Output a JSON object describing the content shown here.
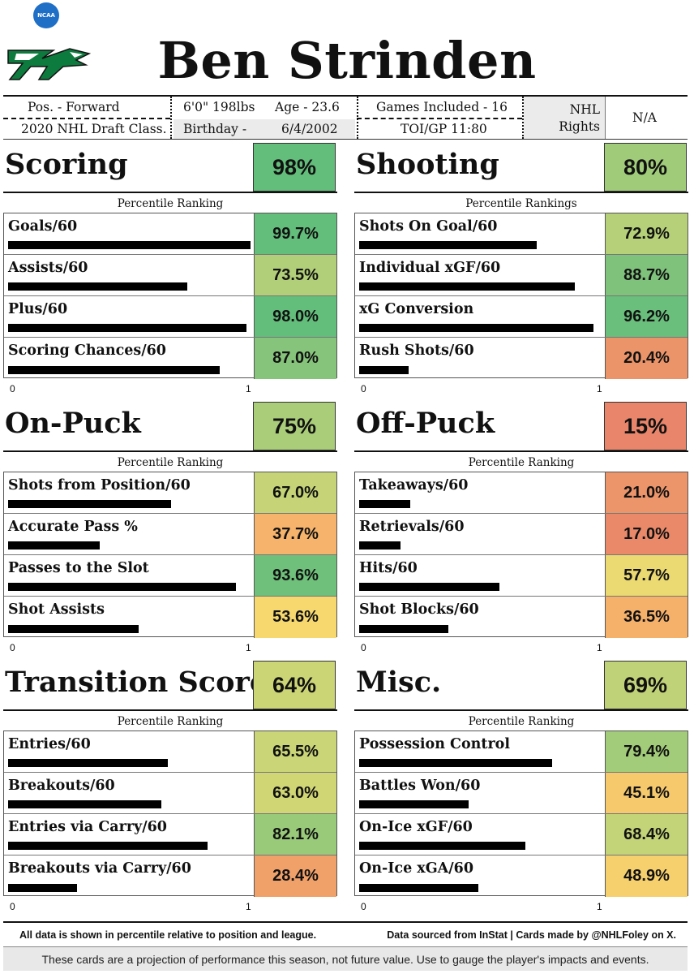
{
  "colors": {
    "green_dark": "#63be7b",
    "green_light": "#95c87b",
    "yellow_green": "#c3d377",
    "yellow": "#f6d86f",
    "orange": "#f5b06a",
    "orange_red": "#e9896a"
  },
  "header": {
    "ncaa_logo": "NCAA",
    "logo": "nd-hawk-logo",
    "player_name": "Ben Strinden"
  },
  "info": {
    "position": "Pos. - Forward",
    "draft_class": "2020 NHL Draft Class.",
    "height_weight": "6'0\" 198lbs",
    "age": "Age - 23.6",
    "birthday_label": "Birthday -",
    "birthday": "6/4/2002",
    "games": "Games Included - 16",
    "toi": "TOI/GP 11:80",
    "rights_label_1": "NHL",
    "rights_label_2": "Rights",
    "rights_value": "N/A"
  },
  "chart_data": [
    {
      "type": "bar",
      "title": "Scoring",
      "score": "98%",
      "score_color": "#63be7b",
      "caption": "Percentile Ranking",
      "xlim": [
        0,
        1
      ],
      "ticks": [
        "0",
        "1"
      ],
      "rows": [
        {
          "label": "Goals/60",
          "value": 0.997,
          "display": "99.7%",
          "color": "#63be7b"
        },
        {
          "label": "Assists/60",
          "value": 0.735,
          "display": "73.5%",
          "color": "#b1cf78"
        },
        {
          "label": "Plus/60",
          "value": 0.98,
          "display": "98.0%",
          "color": "#63be7b"
        },
        {
          "label": "Scoring Chances/60",
          "value": 0.87,
          "display": "87.0%",
          "color": "#86c47b"
        }
      ]
    },
    {
      "type": "bar",
      "title": "Shooting",
      "score": "80%",
      "score_color": "#a0cc7a",
      "caption": "Percentile Rankings",
      "xlim": [
        0,
        1
      ],
      "ticks": [
        "0",
        "1"
      ],
      "rows": [
        {
          "label": "Shots On Goal/60",
          "value": 0.729,
          "display": "72.9%",
          "color": "#b5d078"
        },
        {
          "label": "Individual xGF/60",
          "value": 0.887,
          "display": "88.7%",
          "color": "#7fc27b"
        },
        {
          "label": "xG Conversion",
          "value": 0.962,
          "display": "96.2%",
          "color": "#69bf7b"
        },
        {
          "label": "Rush Shots/60",
          "value": 0.204,
          "display": "20.4%",
          "color": "#ec9469"
        }
      ]
    },
    {
      "type": "bar",
      "title": "On-Puck",
      "score": "75%",
      "score_color": "#aacd79",
      "caption": "Percentile Ranking",
      "xlim": [
        0,
        1
      ],
      "ticks": [
        "0",
        "1"
      ],
      "rows": [
        {
          "label": "Shots from Position/60",
          "value": 0.67,
          "display": "67.0%",
          "color": "#c6d477"
        },
        {
          "label": "Accurate Pass %",
          "value": 0.377,
          "display": "37.7%",
          "color": "#f5b36b"
        },
        {
          "label": "Passes to the Slot",
          "value": 0.936,
          "display": "93.6%",
          "color": "#6fc07b"
        },
        {
          "label": "Shot Assists",
          "value": 0.536,
          "display": "53.6%",
          "color": "#f6d86f"
        }
      ]
    },
    {
      "type": "bar",
      "title": "Off-Puck",
      "score": "15%",
      "score_color": "#e8856a",
      "caption": "Percentile Ranking",
      "xlim": [
        0,
        1
      ],
      "ticks": [
        "0",
        "1"
      ],
      "rows": [
        {
          "label": "Takeaways/60",
          "value": 0.21,
          "display": "21.0%",
          "color": "#ec946a"
        },
        {
          "label": "Retrievals/60",
          "value": 0.17,
          "display": "17.0%",
          "color": "#e9896a"
        },
        {
          "label": "Hits/60",
          "value": 0.577,
          "display": "57.7%",
          "color": "#ebda72"
        },
        {
          "label": "Shot Blocks/60",
          "value": 0.365,
          "display": "36.5%",
          "color": "#f5b06a"
        }
      ]
    },
    {
      "type": "bar",
      "title": "Transition Score",
      "score": "64%",
      "score_color": "#cbd576",
      "caption": "Percentile Ranking",
      "xlim": [
        0,
        1
      ],
      "ticks": [
        "0",
        "1"
      ],
      "rows": [
        {
          "label": "Entries/60",
          "value": 0.655,
          "display": "65.5%",
          "color": "#c9d577"
        },
        {
          "label": "Breakouts/60",
          "value": 0.63,
          "display": "63.0%",
          "color": "#d1d675"
        },
        {
          "label": "Entries via Carry/60",
          "value": 0.821,
          "display": "82.1%",
          "color": "#98ca7a"
        },
        {
          "label": "Breakouts via Carry/60",
          "value": 0.284,
          "display": "28.4%",
          "color": "#f0a16a"
        }
      ]
    },
    {
      "type": "bar",
      "title": "Misc.",
      "score": "69%",
      "score_color": "#c0d277",
      "caption": "Percentile Ranking",
      "xlim": [
        0,
        1
      ],
      "ticks": [
        "0",
        "1"
      ],
      "rows": [
        {
          "label": "Possession Control",
          "value": 0.794,
          "display": "79.4%",
          "color": "#a2cc79"
        },
        {
          "label": "Battles Won/60",
          "value": 0.451,
          "display": "45.1%",
          "color": "#f6c96d"
        },
        {
          "label": "On-Ice xGF/60",
          "value": 0.684,
          "display": "68.4%",
          "color": "#c3d377"
        },
        {
          "label": "On-Ice xGA/60",
          "value": 0.489,
          "display": "48.9%",
          "color": "#f7d06e"
        }
      ]
    }
  ],
  "footer": {
    "left": "All data is shown in percentile relative to position and league.",
    "right": "Data sourced from InStat | Cards made by @NHLFoley on X.",
    "note": "These cards are a projection of performance this season, not future value. Use to gauge the player's impacts and events."
  }
}
